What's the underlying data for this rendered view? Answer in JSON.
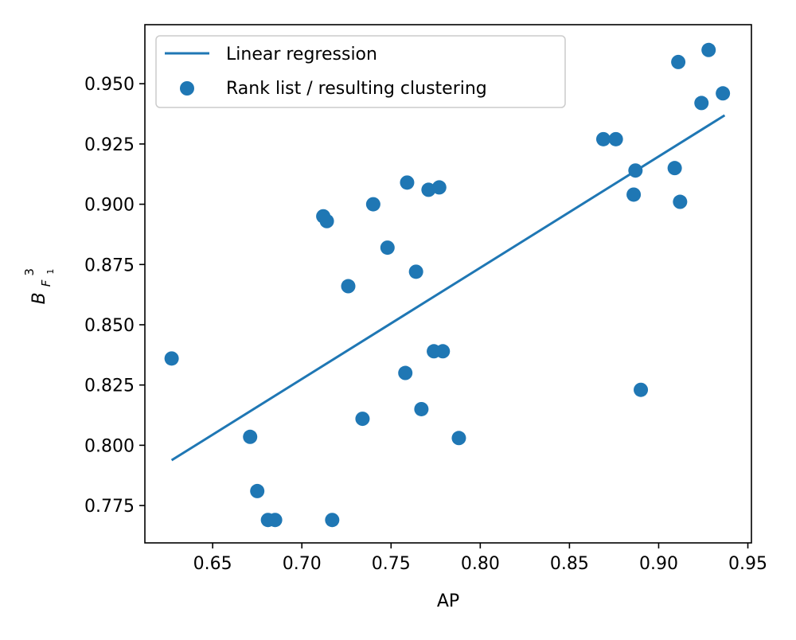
{
  "chart_data": {
    "type": "scatter",
    "xlabel": "AP",
    "ylabel_base": "B",
    "ylabel_sup": "3",
    "ylabel_sub": "F",
    "ylabel_subsub": "1",
    "xlim": [
      0.612,
      0.952
    ],
    "ylim": [
      0.7595,
      0.9745
    ],
    "xticks": [
      0.65,
      0.7,
      0.75,
      0.8,
      0.85,
      0.9,
      0.95
    ],
    "xtick_labels": [
      "0.65",
      "0.70",
      "0.75",
      "0.80",
      "0.85",
      "0.90",
      "0.95"
    ],
    "yticks": [
      0.775,
      0.8,
      0.825,
      0.85,
      0.875,
      0.9,
      0.925,
      0.95
    ],
    "ytick_labels": [
      "0.775",
      "0.800",
      "0.825",
      "0.850",
      "0.875",
      "0.900",
      "0.925",
      "0.950"
    ],
    "grid": false,
    "legend_position": "top-left",
    "colors": {
      "series": "#1f77b4",
      "axes": "#000000",
      "legend_border": "#cccccc"
    },
    "series": [
      {
        "name": "Linear regression",
        "kind": "line",
        "x": [
          0.627,
          0.937
        ],
        "y": [
          0.7938,
          0.9369
        ]
      },
      {
        "name": "Rank list / resulting clustering",
        "kind": "scatter",
        "x": [
          0.627,
          0.671,
          0.675,
          0.681,
          0.685,
          0.712,
          0.714,
          0.717,
          0.726,
          0.734,
          0.74,
          0.748,
          0.758,
          0.759,
          0.764,
          0.767,
          0.771,
          0.774,
          0.777,
          0.779,
          0.788,
          0.869,
          0.876,
          0.886,
          0.887,
          0.89,
          0.909,
          0.911,
          0.912,
          0.924,
          0.928,
          0.936
        ],
        "y": [
          0.836,
          0.8035,
          0.781,
          0.769,
          0.769,
          0.895,
          0.893,
          0.769,
          0.866,
          0.811,
          0.9,
          0.882,
          0.83,
          0.909,
          0.872,
          0.815,
          0.906,
          0.839,
          0.907,
          0.839,
          0.803,
          0.927,
          0.927,
          0.904,
          0.914,
          0.823,
          0.915,
          0.959,
          0.901,
          0.942,
          0.964,
          0.946
        ]
      }
    ]
  }
}
